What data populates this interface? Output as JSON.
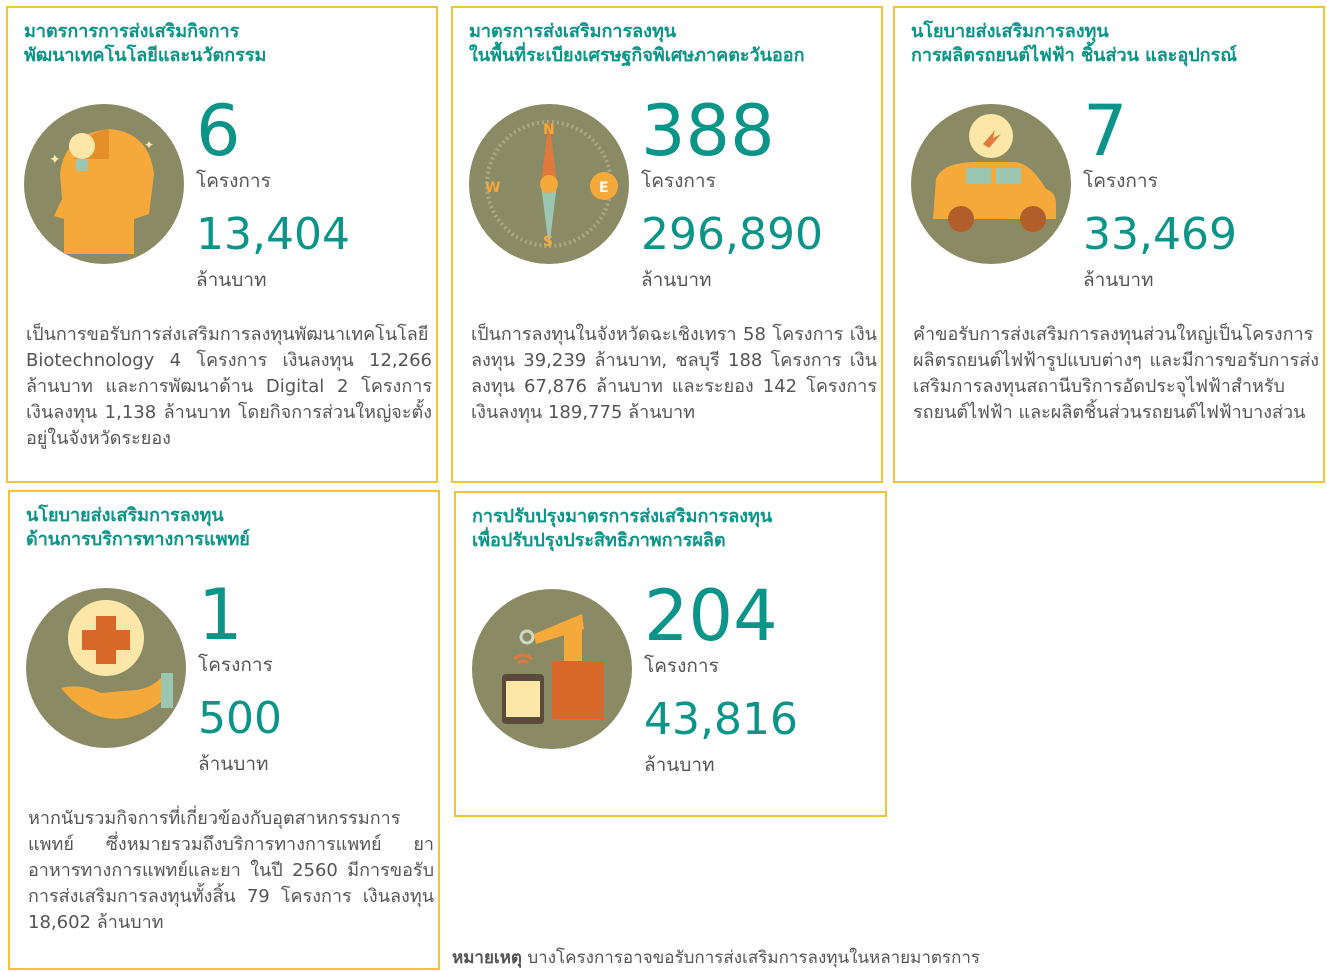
{
  "cards": [
    {
      "title": [
        "มาตรการการส่งเสริมกิจการ",
        "พัฒนาเทคโนโลยีและนวัตกรรม"
      ],
      "count": "6",
      "count_unit": "โครงการ",
      "amount": "13,404",
      "amount_unit": "ล้านบาท",
      "description": "เป็นการขอรับการส่งเสริมการลงทุนพัฒนาเทคโนโลยี Biotechnology 4 โครงการ เงินลงทุน 12,266 ล้านบาท และการพัฒนาด้าน Digital 2 โครงการ เงินลงทุน 1,138 ล้านบาท โดยกิจการส่วนใหญ่จะตั้งอยู่ในจังหวัดระยอง"
    },
    {
      "title": [
        "มาตรการส่งเสริมการลงทุน",
        "ในพื้นที่ระเบียงเศรษฐกิจพิเศษภาคตะวันออก"
      ],
      "count": "388",
      "count_unit": "โครงการ",
      "amount": "296,890",
      "amount_unit": "ล้านบาท",
      "description": "เป็นการลงทุนในจังหวัดฉะเชิงเทรา 58 โครงการ เงินลงทุน 39,239 ล้านบาท, ชลบุรี 188 โครงการ เงินลงทุน 67,876 ล้านบาท และระยอง 142 โครงการ เงินลงทุน 189,775 ล้านบาท"
    },
    {
      "title": [
        "นโยบายส่งเสริมการลงทุน",
        "การผลิตรถยนต์ไฟฟ้า ชิ้นส่วน และอุปกรณ์"
      ],
      "count": "7",
      "count_unit": "โครงการ",
      "amount": "33,469",
      "amount_unit": "ล้านบาท",
      "description": "คำขอรับการส่งเสริมการลงทุนส่วนใหญ่เป็นโครงการผลิตรถยนต์ไฟฟ้ารูปแบบต่างๆ และมีการขอรับการส่งเสริมการลงทุนสถานีบริการอัดประจุไฟฟ้าสำหรับรถยนต์ไฟฟ้า และผลิตชิ้นส่วนรถยนต์ไฟฟ้าบางส่วน"
    },
    {
      "title": [
        "นโยบายส่งเสริมการลงทุน",
        "ด้านการบริการทางการแพทย์"
      ],
      "count": "1",
      "count_unit": "โครงการ",
      "amount": "500",
      "amount_unit": "ล้านบาท",
      "description": "หากนับรวมกิจการที่เกี่ยวข้องกับอุตสาหกรรมการแพทย์ ซึ่งหมายรวมถึงบริการทางการแพทย์ ยา อาหารทางการแพทย์และยา ในปี 2560 มีการขอรับการส่งเสริมการลงทุนทั้งสิ้น 79 โครงการ เงินลงทุน 18,602 ล้านบาท"
    },
    {
      "title": [
        "การปรับปรุงมาตรการส่งเสริมการลงทุน",
        "เพื่อปรับปรุงประสิทธิภาพการผลิต"
      ],
      "count": "204",
      "count_unit": "โครงการ",
      "amount": "43,816",
      "amount_unit": "ล้านบาท"
    }
  ],
  "footnote": {
    "label": "หมายเหตุ",
    "text": "บางโครงการอาจขอรับการส่งเสริมการลงทุนในหลายมาตรการ"
  }
}
